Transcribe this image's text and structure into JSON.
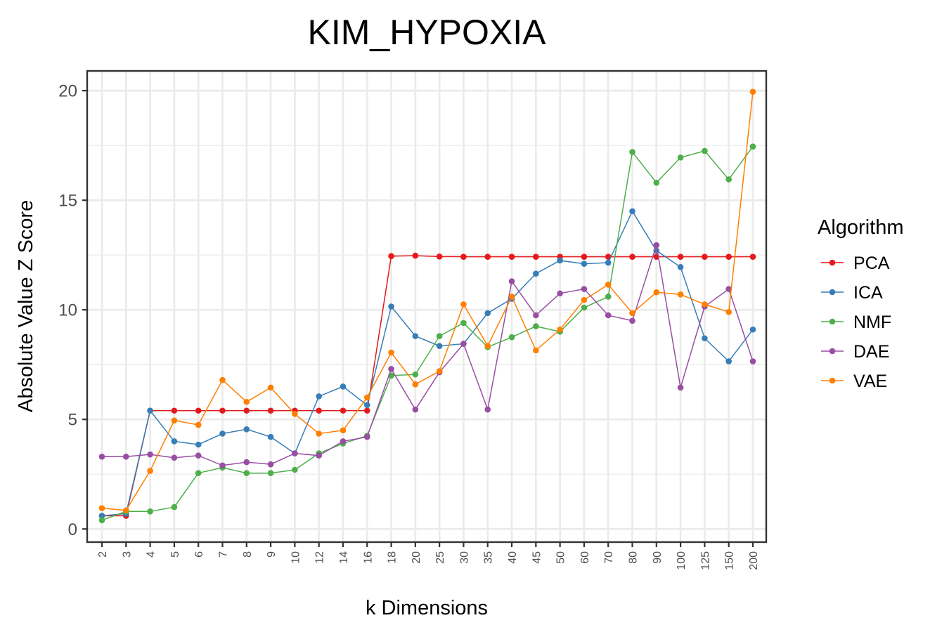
{
  "chart_data": {
    "type": "line",
    "title": "KIM_HYPOXIA",
    "xlabel": "k Dimensions",
    "ylabel": "Absolute Value Z Score",
    "categories": [
      "2",
      "3",
      "4",
      "5",
      "6",
      "7",
      "8",
      "9",
      "10",
      "12",
      "14",
      "16",
      "18",
      "20",
      "25",
      "30",
      "35",
      "40",
      "45",
      "50",
      "60",
      "70",
      "80",
      "90",
      "100",
      "125",
      "150",
      "200"
    ],
    "yticks": [
      0,
      5,
      10,
      15,
      20
    ],
    "ylim": [
      -0.6,
      20.9
    ],
    "grid": true,
    "legend_title": "Algorithm",
    "legend_position": "right",
    "series": [
      {
        "name": "PCA",
        "color": "#E41A1C",
        "values": [
          0.6,
          0.6,
          5.4,
          5.4,
          5.4,
          5.4,
          5.4,
          5.4,
          5.4,
          5.4,
          5.4,
          5.4,
          12.45,
          12.47,
          12.43,
          12.42,
          12.42,
          12.42,
          12.42,
          12.42,
          12.42,
          12.42,
          12.42,
          12.42,
          12.42,
          12.42,
          12.42,
          12.42
        ]
      },
      {
        "name": "ICA",
        "color": "#377EB8",
        "values": [
          0.6,
          0.7,
          5.4,
          4.0,
          3.85,
          4.35,
          4.55,
          4.2,
          3.45,
          6.05,
          6.5,
          5.65,
          10.15,
          8.8,
          8.35,
          8.45,
          9.85,
          10.5,
          11.65,
          12.25,
          12.1,
          12.15,
          14.5,
          12.7,
          11.95,
          8.7,
          7.65,
          9.1
        ]
      },
      {
        "name": "NMF",
        "color": "#4DAF4A",
        "values": [
          0.4,
          0.8,
          0.8,
          1.0,
          2.55,
          2.8,
          2.55,
          2.55,
          2.7,
          3.45,
          3.9,
          4.25,
          7.0,
          7.05,
          8.8,
          9.4,
          8.3,
          8.75,
          9.25,
          9.0,
          10.1,
          10.6,
          17.2,
          15.8,
          16.95,
          17.25,
          15.95,
          17.45
        ]
      },
      {
        "name": "DAE",
        "color": "#984EA3",
        "values": [
          3.3,
          3.3,
          3.4,
          3.25,
          3.35,
          2.9,
          3.05,
          2.95,
          3.45,
          3.35,
          4.0,
          4.2,
          7.3,
          5.45,
          7.15,
          8.45,
          5.45,
          11.3,
          9.75,
          10.75,
          10.95,
          9.75,
          9.5,
          12.95,
          6.45,
          10.15,
          10.95,
          7.65
        ]
      },
      {
        "name": "VAE",
        "color": "#FF7F00",
        "values": [
          0.95,
          0.85,
          2.65,
          4.95,
          4.75,
          6.8,
          5.8,
          6.45,
          5.25,
          4.35,
          4.5,
          6.0,
          8.05,
          6.6,
          7.2,
          10.25,
          8.35,
          10.6,
          8.15,
          9.1,
          10.45,
          11.15,
          9.85,
          10.8,
          10.7,
          10.25,
          9.9,
          19.95
        ]
      }
    ]
  }
}
